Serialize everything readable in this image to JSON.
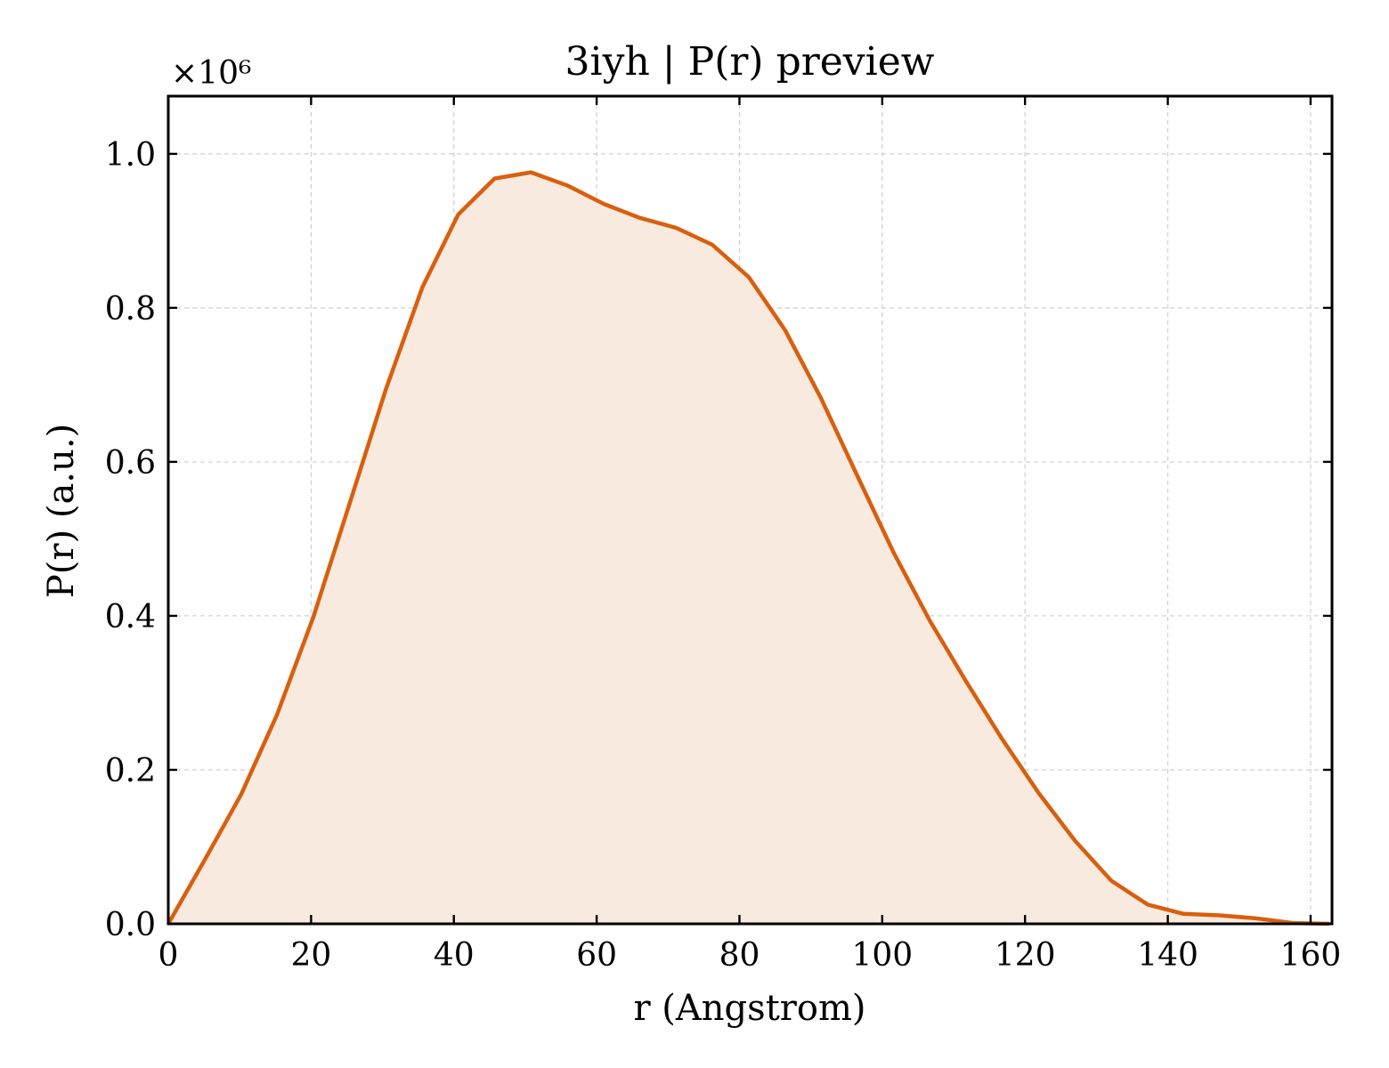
{
  "chart_data": {
    "type": "area",
    "title": "3iyh | P(r) preview",
    "xlabel": "r (Angstrom)",
    "ylabel": "P(r) (a.u.)",
    "y_scale_label": "×10⁶",
    "xlim": [
      0,
      163
    ],
    "ylim": [
      0,
      1.075
    ],
    "x_ticks": [
      0,
      20,
      40,
      60,
      80,
      100,
      120,
      140,
      160
    ],
    "x_tick_labels": [
      "0",
      "20",
      "40",
      "60",
      "80",
      "100",
      "120",
      "140",
      "160"
    ],
    "y_ticks": [
      0.0,
      0.2,
      0.4,
      0.6,
      0.8,
      1.0
    ],
    "y_tick_labels": [
      "0.0",
      "0.2",
      "0.4",
      "0.6",
      "0.8",
      "1.0"
    ],
    "grid": true,
    "legend": "none",
    "colors": {
      "line": "#d95f0e",
      "fill": "#f9eadf"
    },
    "series": [
      {
        "x": [
          0,
          5.1,
          10.2,
          15.2,
          20.3,
          25.4,
          30.5,
          35.6,
          40.6,
          45.7,
          50.8,
          55.9,
          61.0,
          66.0,
          71.1,
          76.2,
          81.3,
          86.4,
          91.4,
          96.5,
          101.6,
          106.7,
          111.8,
          116.8,
          121.9,
          127.0,
          132.1,
          137.2,
          142.2,
          147.3,
          152.4,
          157.5,
          162.6
        ],
        "y": [
          0.0,
          0.083,
          0.168,
          0.271,
          0.398,
          0.546,
          0.695,
          0.827,
          0.921,
          0.968,
          0.976,
          0.959,
          0.935,
          0.917,
          0.904,
          0.882,
          0.84,
          0.771,
          0.683,
          0.582,
          0.482,
          0.393,
          0.314,
          0.24,
          0.17,
          0.108,
          0.056,
          0.025,
          0.013,
          0.011,
          0.007,
          0.001,
          0.0
        ]
      }
    ]
  }
}
